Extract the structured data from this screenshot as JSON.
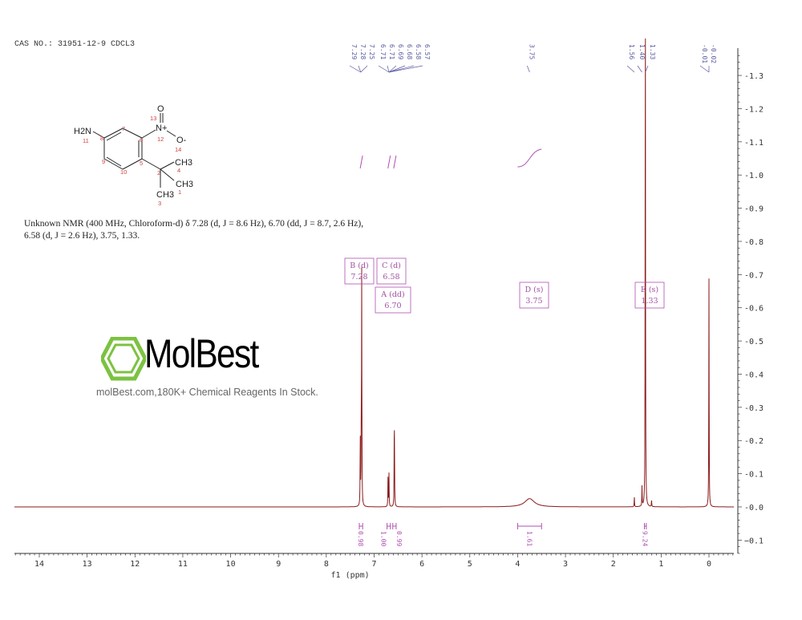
{
  "header": {
    "cas_line": "CAS NO.: 31951-12-9 CDCL3"
  },
  "description": {
    "line1": "Unknown NMR (400 MHz, Chloroform-d) δ 7.28 (d, J = 8.6 Hz), 6.70 (dd, J = 8.7, 2.6 Hz),",
    "line2": "6.58 (d, J = 2.6 Hz), 3.75, 1.33."
  },
  "watermark": {
    "logo_text": "MolBest",
    "tagline": "molBest.com,180K+ Chemical Reagents In Stock.",
    "logo_color": "#7cc242"
  },
  "molecule": {
    "atoms": [
      "H2N",
      "11",
      "7",
      "8",
      "6",
      "9",
      "10",
      "5",
      "2",
      "4",
      "1",
      "3",
      "12",
      "13",
      "14",
      "O",
      "N+",
      "O-",
      "CH3",
      "CH3",
      "CH3"
    ]
  },
  "chart_data": {
    "type": "line",
    "title": "",
    "xlabel": "f1 (ppm)",
    "ylabel": "",
    "xlim": [
      14.52,
      -0.52
    ],
    "ylim": [
      -0.15,
      1.38
    ],
    "x_reversed": true,
    "x_ticks": [
      14,
      13,
      12,
      11,
      10,
      9,
      8,
      7,
      6,
      5,
      4,
      3,
      2,
      1,
      0
    ],
    "y_ticks": [
      "1.3",
      "1.2",
      "1.1",
      "1.0",
      "0.9",
      "0.8",
      "0.7",
      "0.6",
      "0.5",
      "0.4",
      "0.3",
      "0.2",
      "0.1",
      "0.0",
      "-0.1"
    ],
    "y_axis_side": "right",
    "spectrum_color": "#8b1a1a",
    "peaks": [
      {
        "ppm": 7.29,
        "height": 0.2
      },
      {
        "ppm": 7.27,
        "height": 0.21
      },
      {
        "ppm": 7.26,
        "height": 0.69
      },
      {
        "ppm": 6.71,
        "height": 0.09
      },
      {
        "ppm": 6.69,
        "height": 0.1
      },
      {
        "ppm": 6.58,
        "height": 0.16
      },
      {
        "ppm": 6.575,
        "height": 0.16
      },
      {
        "ppm": 3.75,
        "height": 0.025,
        "broad": true
      },
      {
        "ppm": 1.56,
        "height": 0.03
      },
      {
        "ppm": 1.4,
        "height": 0.06
      },
      {
        "ppm": 1.33,
        "height": 1.6
      },
      {
        "ppm": 1.2,
        "height": 0.02
      },
      {
        "ppm": 0.0,
        "height": 0.69
      }
    ],
    "peak_labels": [
      {
        "group": [
          "7.29",
          "7.28",
          "7.25"
        ],
        "target": 7.28
      },
      {
        "group": [
          "6.71",
          "6.71",
          "6.69",
          "6.68",
          "6.58",
          "6.57"
        ],
        "target": 6.69
      },
      {
        "group": [
          "3.75"
        ],
        "target": 3.75
      },
      {
        "group": [
          "1.56"
        ],
        "target": 1.56
      },
      {
        "group": [
          "1.40"
        ],
        "target": 1.4
      },
      {
        "group": [
          "1.33"
        ],
        "target": 1.33
      },
      {
        "group": [
          "-0.01",
          "-0.02"
        ],
        "target": 0.0
      }
    ],
    "multiplets": [
      {
        "label": "B (d)",
        "value": "7.28",
        "ppm": 7.28
      },
      {
        "label": "C (d)",
        "value": "6.58",
        "ppm": 6.58
      },
      {
        "label": "A (dd)",
        "value": "6.70",
        "ppm": 6.7
      },
      {
        "label": "D (s)",
        "value": "3.75",
        "ppm": 3.75
      },
      {
        "label": "E (s)",
        "value": "1.33",
        "ppm": 1.33
      }
    ],
    "integrals": [
      {
        "from": 7.31,
        "to": 7.24,
        "value": "0.98"
      },
      {
        "from": 6.73,
        "to": 6.66,
        "value": "1.00"
      },
      {
        "from": 6.61,
        "to": 6.54,
        "value": "0.99"
      },
      {
        "from": 4.0,
        "to": 3.5,
        "value": "1.61"
      },
      {
        "from": 1.35,
        "to": 1.31,
        "value": "9.24"
      }
    ],
    "integral_color": "#b050b0",
    "label_color": "#5a5aa0"
  }
}
